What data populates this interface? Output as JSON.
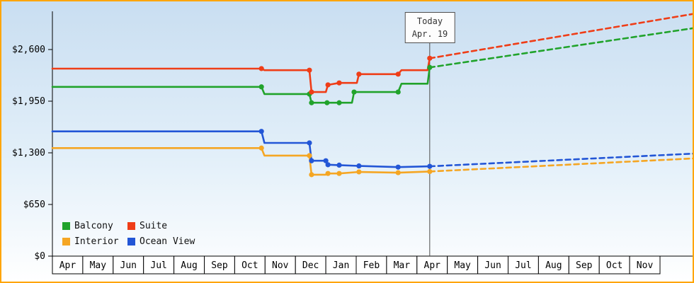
{
  "frame": {
    "border_color": "#ffa500",
    "bg_top": "#c9def1",
    "bg_mid": "#e2eff9",
    "bg_bottom": "#ffffff",
    "axis_color": "#000000",
    "today_line_color": "#4d4d4d"
  },
  "chart_data": {
    "type": "line",
    "title": "",
    "xlabel": "",
    "ylabel": "",
    "y_axis": {
      "tick_values": [
        0,
        650,
        1300,
        1950,
        2600
      ],
      "tick_labels": [
        "$0",
        "$650",
        "$1,300",
        "$1,950",
        "$2,600"
      ],
      "max_value_at_top": 3100
    },
    "x_axis": {
      "months": [
        "Apr",
        "May",
        "Jun",
        "Jul",
        "Aug",
        "Sep",
        "Oct",
        "Nov",
        "Dec",
        "Jan",
        "Feb",
        "Mar",
        "Apr",
        "May",
        "Jun",
        "Jul",
        "Aug",
        "Sep",
        "Oct",
        "Nov"
      ]
    },
    "today": {
      "label_line1": "Today",
      "label_line2": "Apr. 19",
      "month_frac": 12.42
    },
    "projection_end_month_frac": 21.12,
    "series": [
      {
        "name": "Balcony",
        "color": "#21a32b",
        "solid": [
          [
            0,
            2130
          ],
          [
            6.88,
            2130
          ],
          [
            6.98,
            2040
          ],
          [
            8.46,
            2040
          ],
          [
            8.53,
            1930
          ],
          [
            9.86,
            1930
          ],
          [
            9.93,
            2065
          ],
          [
            11.38,
            2065
          ],
          [
            11.49,
            2170
          ],
          [
            12.35,
            2170
          ],
          [
            12.42,
            2375
          ]
        ],
        "dashed": [
          [
            12.42,
            2375
          ],
          [
            21.12,
            2870
          ]
        ],
        "markers": [
          [
            6.88,
            2130
          ],
          [
            8.46,
            2040
          ],
          [
            8.53,
            1930
          ],
          [
            9.04,
            1930
          ],
          [
            9.44,
            1930
          ],
          [
            9.93,
            2065
          ],
          [
            11.38,
            2065
          ],
          [
            12.42,
            2375
          ]
        ]
      },
      {
        "name": "Suite",
        "color": "#ef3d17",
        "solid": [
          [
            0,
            2360
          ],
          [
            6.88,
            2360
          ],
          [
            6.98,
            2340
          ],
          [
            8.46,
            2340
          ],
          [
            8.53,
            2065
          ],
          [
            9.0,
            2065
          ],
          [
            9.07,
            2155
          ],
          [
            9.44,
            2180
          ],
          [
            10.02,
            2180
          ],
          [
            10.09,
            2290
          ],
          [
            11.38,
            2290
          ],
          [
            11.49,
            2340
          ],
          [
            12.35,
            2340
          ],
          [
            12.42,
            2490
          ]
        ],
        "dashed": [
          [
            12.42,
            2490
          ],
          [
            21.12,
            3050
          ]
        ],
        "markers": [
          [
            6.88,
            2360
          ],
          [
            8.46,
            2340
          ],
          [
            8.53,
            2065
          ],
          [
            9.07,
            2155
          ],
          [
            9.44,
            2180
          ],
          [
            10.09,
            2290
          ],
          [
            11.38,
            2290
          ],
          [
            12.42,
            2490
          ]
        ]
      },
      {
        "name": "Interior",
        "color": "#f5a623",
        "solid": [
          [
            0,
            1360
          ],
          [
            6.88,
            1360
          ],
          [
            6.98,
            1265
          ],
          [
            8.46,
            1265
          ],
          [
            8.53,
            1025
          ],
          [
            9.0,
            1025
          ],
          [
            9.07,
            1040
          ],
          [
            9.44,
            1040
          ],
          [
            10.09,
            1060
          ],
          [
            11.38,
            1050
          ],
          [
            12.42,
            1065
          ]
        ],
        "dashed": [
          [
            12.42,
            1065
          ],
          [
            21.12,
            1230
          ]
        ],
        "markers": [
          [
            6.88,
            1360
          ],
          [
            8.46,
            1265
          ],
          [
            8.53,
            1025
          ],
          [
            9.07,
            1040
          ],
          [
            9.44,
            1040
          ],
          [
            10.09,
            1060
          ],
          [
            11.38,
            1050
          ],
          [
            12.42,
            1065
          ]
        ]
      },
      {
        "name": "Ocean View",
        "color": "#2356d6",
        "solid": [
          [
            0,
            1570
          ],
          [
            6.88,
            1570
          ],
          [
            6.98,
            1425
          ],
          [
            8.46,
            1425
          ],
          [
            8.53,
            1200
          ],
          [
            9.0,
            1200
          ],
          [
            9.07,
            1150
          ],
          [
            9.44,
            1145
          ],
          [
            10.09,
            1135
          ],
          [
            11.38,
            1120
          ],
          [
            12.42,
            1130
          ]
        ],
        "dashed": [
          [
            12.42,
            1130
          ],
          [
            21.12,
            1290
          ]
        ],
        "markers": [
          [
            6.88,
            1570
          ],
          [
            8.46,
            1425
          ],
          [
            8.53,
            1200
          ],
          [
            9.0,
            1200
          ],
          [
            9.07,
            1150
          ],
          [
            9.44,
            1145
          ],
          [
            10.09,
            1135
          ],
          [
            11.38,
            1120
          ],
          [
            12.42,
            1130
          ]
        ]
      }
    ]
  },
  "legend": {
    "items": [
      {
        "label": "Balcony",
        "color": "#21a32b"
      },
      {
        "label": "Suite",
        "color": "#ef3d17"
      },
      {
        "label": "Interior",
        "color": "#f5a623"
      },
      {
        "label": "Ocean View",
        "color": "#2356d6"
      }
    ]
  }
}
